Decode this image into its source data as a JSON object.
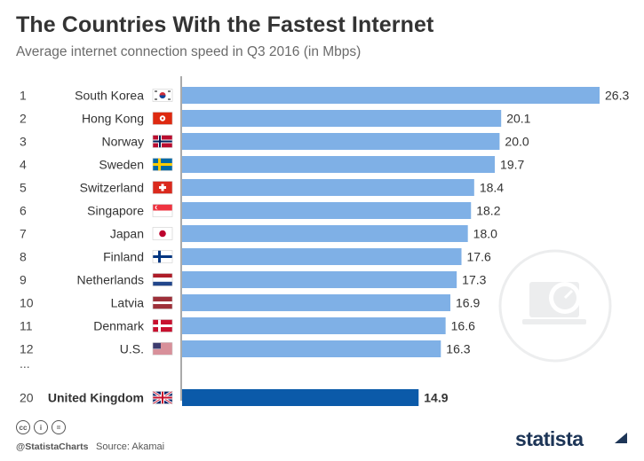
{
  "header": {
    "title": "The Countries With the Fastest Internet",
    "subtitle": "Average internet connection speed in Q3 2016 (in Mbps)"
  },
  "chart_data": {
    "type": "bar",
    "orientation": "horizontal",
    "ranks": [
      "1",
      "2",
      "3",
      "4",
      "5",
      "6",
      "7",
      "8",
      "9",
      "10",
      "11",
      "12",
      "20"
    ],
    "categories": [
      "South Korea",
      "Hong Kong",
      "Norway",
      "Sweden",
      "Switzerland",
      "Singapore",
      "Japan",
      "Finland",
      "Netherlands",
      "Latvia",
      "Denmark",
      "U.S.",
      "United Kingdom"
    ],
    "values": [
      26.3,
      20.1,
      20.0,
      19.7,
      18.4,
      18.2,
      18.0,
      17.6,
      17.3,
      16.9,
      16.6,
      16.3,
      14.9
    ],
    "value_labels": [
      "26.3",
      "20.1",
      "20.0",
      "19.7",
      "18.4",
      "18.2",
      "18.0",
      "17.6",
      "17.3",
      "16.9",
      "16.6",
      "16.3",
      "14.9"
    ],
    "flags": [
      "south-korea-flag",
      "hong-kong-flag",
      "norway-flag",
      "sweden-flag",
      "switzerland-flag",
      "singapore-flag",
      "japan-flag",
      "finland-flag",
      "netherlands-flag",
      "latvia-flag",
      "denmark-flag",
      "us-flag",
      "uk-flag"
    ],
    "highlight": "United Kingdom",
    "gap_marker": "...",
    "xlim": [
      0,
      26.3
    ],
    "colors": {
      "bar": "#7fb0e6",
      "highlight_bar": "#0b5aa9",
      "baseline": "#555555"
    }
  },
  "footer": {
    "icons": [
      "creative-commons-icon",
      "attribution-icon",
      "no-derivatives-icon"
    ],
    "handle": "@StatistaCharts",
    "source": "Source: Akamai",
    "logo": "statista"
  }
}
